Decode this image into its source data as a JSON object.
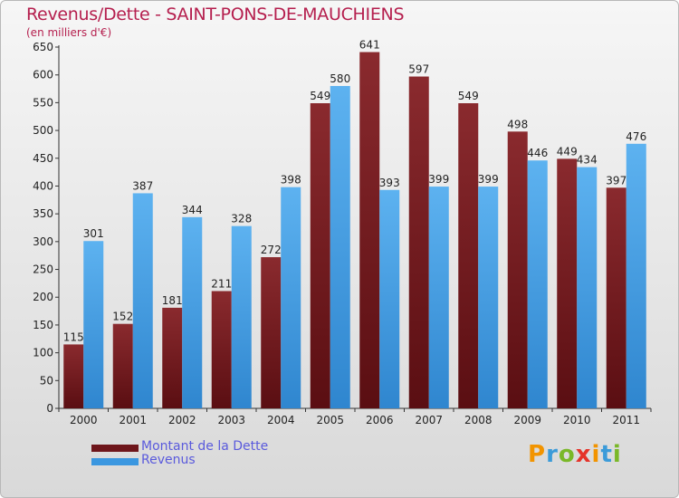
{
  "chart_data": {
    "type": "bar",
    "title": "Revenus/Dette - SAINT-PONS-DE-MAUCHIENS",
    "subtitle": "(en milliers d'€)",
    "categories": [
      "2000",
      "2001",
      "2002",
      "2003",
      "2004",
      "2005",
      "2006",
      "2007",
      "2008",
      "2009",
      "2010",
      "2011"
    ],
    "series": [
      {
        "name": "Montant de la Dette",
        "color": "#7a1f24",
        "values": [
          115,
          152,
          181,
          211,
          272,
          549,
          641,
          597,
          549,
          498,
          449,
          397
        ]
      },
      {
        "name": "Revenus",
        "color": "#4aa3e8",
        "values": [
          301,
          387,
          344,
          328,
          398,
          580,
          393,
          399,
          399,
          446,
          434,
          476
        ]
      }
    ],
    "ylim": [
      0,
      650
    ],
    "yticks": [
      0,
      50,
      100,
      150,
      200,
      250,
      300,
      350,
      400,
      450,
      500,
      550,
      600,
      650
    ],
    "grid": false,
    "legend": "bottom-left"
  },
  "logo": {
    "letters": [
      "P",
      "r",
      "o",
      "x",
      "i",
      "t",
      "i"
    ],
    "colors": [
      "#f29400",
      "#3b9bd9",
      "#7ab828",
      "#e5332a",
      "#f29400",
      "#3b9bd9",
      "#7ab828"
    ]
  }
}
